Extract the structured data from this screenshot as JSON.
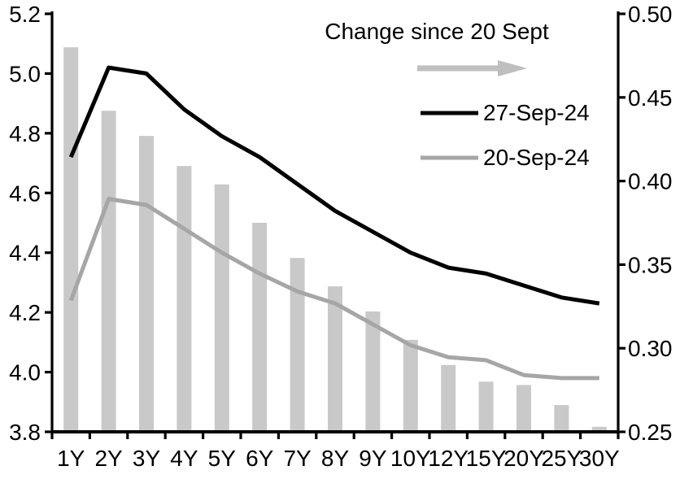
{
  "chart_data": {
    "type": "combo",
    "title": "",
    "categories": [
      "1Y",
      "2Y",
      "3Y",
      "4Y",
      "5Y",
      "6Y",
      "7Y",
      "8Y",
      "9Y",
      "10Y",
      "12Y",
      "15Y",
      "20Y",
      "25Y",
      "30Y"
    ],
    "left_axis": {
      "min": 3.8,
      "max": 5.2,
      "step": 0.2,
      "tick_labels": [
        "3.8",
        "4.0",
        "4.2",
        "4.4",
        "4.6",
        "4.8",
        "5.0",
        "5.2"
      ]
    },
    "right_axis": {
      "min": 0.25,
      "max": 0.5,
      "step": 0.05,
      "tick_labels": [
        "0.25",
        "0.30",
        "0.35",
        "0.40",
        "0.45",
        "0.50"
      ]
    },
    "grid": false,
    "legend": {
      "position": "top-center-inside",
      "arrow_label": "Change since 20 Sept",
      "items": [
        "Change since 20 Sept",
        "27-Sep-24",
        "20-Sep-24"
      ]
    },
    "series": [
      {
        "name": "Change since 20 Sept",
        "type": "bar",
        "axis": "right",
        "color": "#c9c9c9",
        "values": [
          0.48,
          0.442,
          0.427,
          0.409,
          0.398,
          0.375,
          0.354,
          0.337,
          0.322,
          0.305,
          0.29,
          0.28,
          0.278,
          0.266,
          0.253
        ]
      },
      {
        "name": "27-Sep-24",
        "type": "line",
        "axis": "left",
        "color": "#000000",
        "values": [
          4.72,
          5.02,
          5.0,
          4.88,
          4.79,
          4.72,
          4.63,
          4.54,
          4.47,
          4.4,
          4.35,
          4.33,
          4.29,
          4.25,
          4.23
        ]
      },
      {
        "name": "20-Sep-24",
        "type": "line",
        "axis": "left",
        "color": "#a6a6a6",
        "values": [
          4.24,
          4.58,
          4.56,
          4.48,
          4.4,
          4.33,
          4.27,
          4.23,
          4.16,
          4.09,
          4.05,
          4.04,
          3.99,
          3.98,
          3.98
        ]
      }
    ],
    "colors": {
      "background": "#ffffff",
      "axis": "#000000",
      "arrow": "#bfbfbf",
      "bar": "#c9c9c9",
      "line_27sep": "#000000",
      "line_20sep": "#a6a6a6"
    }
  }
}
